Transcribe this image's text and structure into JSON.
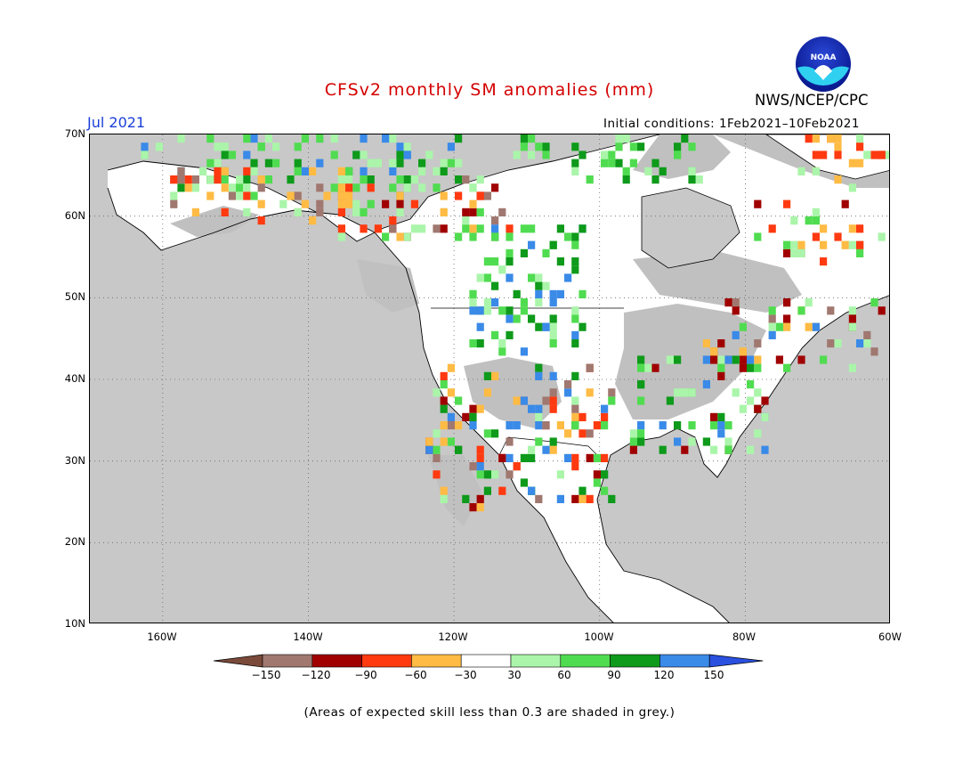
{
  "header": {
    "title": "CFSv2 monthly SM anomalies (mm)",
    "period": "Jul 2021",
    "initial_conditions": "Initial conditions: 1Feb2021–10Feb2021",
    "org": "NWS/NCEP/CPC",
    "logo_text": "NOAA"
  },
  "axes": {
    "lat_labels": [
      "70N",
      "60N",
      "50N",
      "40N",
      "30N",
      "20N",
      "10N"
    ],
    "lon_labels": [
      "160W",
      "140W",
      "120W",
      "100W",
      "80W",
      "60W"
    ]
  },
  "colorbar": {
    "labels": [
      "−150",
      "−120",
      "−90",
      "−60",
      "−30",
      "30",
      "60",
      "90",
      "120",
      "150"
    ],
    "colors": [
      "#7a4a3a",
      "#a07870",
      "#a00000",
      "#ff3a10",
      "#ffbb44",
      "#ffffff",
      "#aaf5aa",
      "#50dc50",
      "#0e9a1a",
      "#3a8ae8",
      "#2a50e0"
    ]
  },
  "footnote": "(Areas of expected skill less than 0.3 are shaded in grey.)",
  "colors": {
    "title": "#d40000",
    "period": "#1a3fd8",
    "ocean": "#c8c8c8",
    "land_no_signal": "#ffffff",
    "low_skill_grey": "#c0c0c0"
  }
}
